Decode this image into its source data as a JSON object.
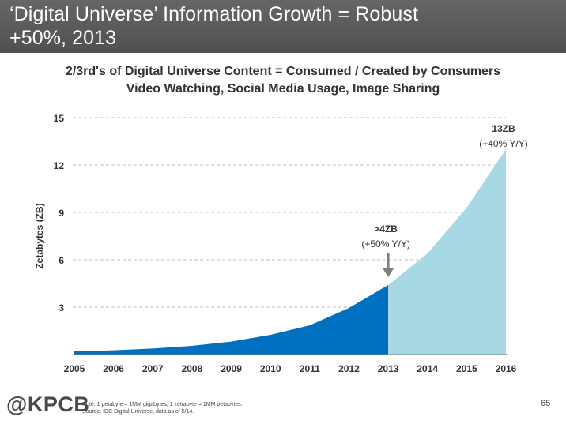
{
  "slide": {
    "title_line1": "‘Digital Universe’ Information Growth = Robust",
    "title_line2": "+50%, 2013",
    "subtitle_line1": "2/3rd's of Digital Universe Content = Consumed / Created by Consumers",
    "subtitle_line2": "Video Watching, Social Media Usage, Image Sharing",
    "note_line1": "Note: 1 petabyte = 1MM gigabytes, 1 zettabyte = 1MM petabytes.",
    "note_line2": "Source: IDC Digital Universe, data as of 5/14.",
    "brand": "@KPCB",
    "page_number": "65"
  },
  "colors": {
    "header_bg": "#5b5b5b",
    "historical_fill": "#0070c0",
    "projected_fill": "#a8d8e4",
    "arrow": "#7f7f7f",
    "grid": "#bfbfbf"
  },
  "chart_data": {
    "type": "area",
    "ylabel": "Zetabytes (ZB)",
    "xlabel": "",
    "x": [
      "2005",
      "2006",
      "2007",
      "2008",
      "2009",
      "2010",
      "2011",
      "2012",
      "2013",
      "2014",
      "2015",
      "2016"
    ],
    "series": [
      {
        "values": [
          0.2,
          0.27,
          0.38,
          0.55,
          0.82,
          1.25,
          1.85,
          2.95,
          4.4,
          null,
          null,
          null
        ]
      },
      {
        "values": [
          null,
          null,
          null,
          null,
          null,
          null,
          null,
          null,
          4.4,
          6.4,
          9.3,
          13.0
        ]
      }
    ],
    "ylim": [
      0,
      15
    ],
    "yticks": [
      3,
      6,
      9,
      12,
      15
    ],
    "grid": true,
    "annotations": [
      {
        "x": "2013",
        "line1": ">4ZB",
        "line2": "(+50% Y/Y)",
        "arrow": true
      },
      {
        "x": "2016",
        "line1": "13ZB",
        "line2": "(+40% Y/Y)",
        "arrow": false
      }
    ]
  }
}
